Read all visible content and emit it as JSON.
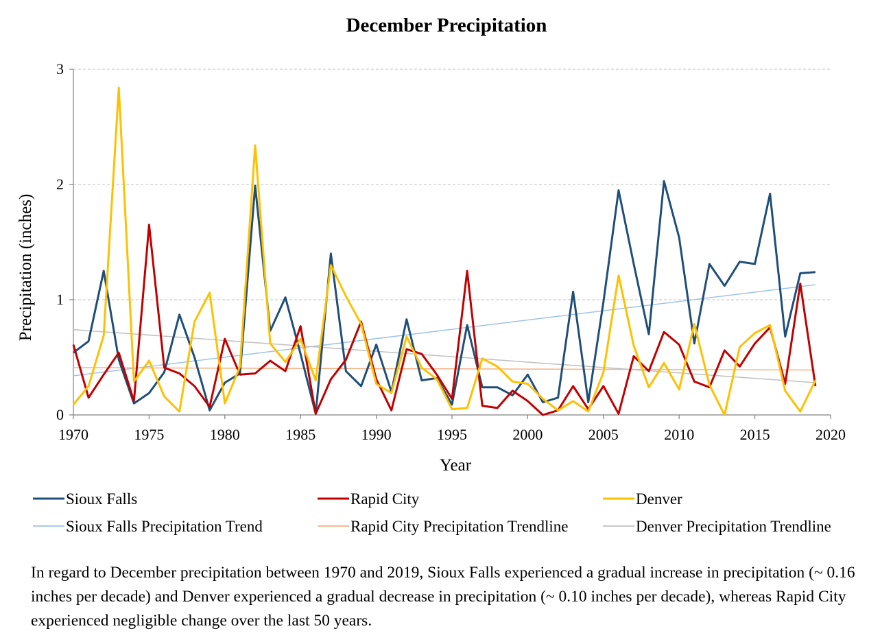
{
  "chart_data": {
    "type": "line",
    "title": "December Precipitation",
    "xlabel": "Year",
    "ylabel": "Precipitation (inches)",
    "xlim": [
      1970,
      2020
    ],
    "ylim": [
      0,
      3
    ],
    "xticks": [
      1970,
      1975,
      1980,
      1985,
      1990,
      1995,
      2000,
      2005,
      2010,
      2015,
      2020
    ],
    "yticks": [
      0,
      1,
      2,
      3
    ],
    "grid": "horizontal dashed",
    "legend_position": "bottom",
    "x": [
      1970,
      1971,
      1972,
      1973,
      1974,
      1975,
      1976,
      1977,
      1978,
      1979,
      1980,
      1981,
      1982,
      1983,
      1984,
      1985,
      1986,
      1987,
      1988,
      1989,
      1990,
      1991,
      1992,
      1993,
      1994,
      1995,
      1996,
      1997,
      1998,
      1999,
      2000,
      2001,
      2002,
      2003,
      2004,
      2005,
      2006,
      2007,
      2008,
      2009,
      2010,
      2011,
      2012,
      2013,
      2014,
      2015,
      2016,
      2017,
      2018,
      2019
    ],
    "series": [
      {
        "name": "Sioux Falls",
        "color": "#1F4E79",
        "width": 3,
        "values": [
          0.54,
          0.64,
          1.25,
          0.48,
          0.1,
          0.19,
          0.37,
          0.87,
          0.5,
          0.04,
          0.28,
          0.36,
          1.99,
          0.73,
          1.02,
          0.53,
          0.01,
          1.4,
          0.38,
          0.25,
          0.61,
          0.2,
          0.83,
          0.3,
          0.32,
          0.09,
          0.78,
          0.24,
          0.24,
          0.17,
          0.35,
          0.11,
          0.15,
          1.07,
          0.11,
          0.98,
          1.95,
          1.31,
          0.7,
          2.03,
          1.54,
          0.62,
          1.31,
          1.12,
          1.33,
          1.31,
          1.92,
          0.68,
          1.23,
          1.24
        ]
      },
      {
        "name": "Rapid City",
        "color": "#C00000",
        "width": 3,
        "values": [
          0.61,
          0.15,
          0.35,
          0.54,
          0.12,
          1.65,
          0.41,
          0.36,
          0.25,
          0.07,
          0.66,
          0.35,
          0.36,
          0.47,
          0.38,
          0.77,
          0.01,
          0.31,
          0.48,
          0.81,
          0.31,
          0.04,
          0.57,
          0.53,
          0.35,
          0.14,
          1.25,
          0.08,
          0.06,
          0.21,
          0.12,
          0.0,
          0.04,
          0.25,
          0.05,
          0.25,
          0.01,
          0.51,
          0.38,
          0.72,
          0.61,
          0.29,
          0.24,
          0.56,
          0.42,
          0.62,
          0.76,
          0.27,
          1.14,
          0.25
        ]
      },
      {
        "name": "Denver",
        "color": "#FFC000",
        "width": 3,
        "values": [
          0.09,
          0.25,
          0.69,
          2.84,
          0.29,
          0.47,
          0.16,
          0.03,
          0.81,
          1.06,
          0.1,
          0.42,
          2.34,
          0.62,
          0.46,
          0.66,
          0.3,
          1.3,
          1.03,
          0.79,
          0.27,
          0.19,
          0.68,
          0.41,
          0.31,
          0.05,
          0.06,
          0.49,
          0.42,
          0.29,
          0.27,
          0.14,
          0.04,
          0.12,
          0.03,
          0.37,
          1.21,
          0.6,
          0.24,
          0.45,
          0.22,
          0.79,
          0.26,
          0.0,
          0.59,
          0.71,
          0.78,
          0.21,
          0.03,
          0.3
        ]
      },
      {
        "name": "Sioux Falls Precipitation Trend",
        "color": "#9DC3E6",
        "width": 1.5,
        "trend": true,
        "endpoints": {
          "x": [
            1970,
            2019
          ],
          "y": [
            0.34,
            1.13
          ]
        }
      },
      {
        "name": "Rapid City Precipitation Trendline",
        "color": "#F4B183",
        "width": 1.5,
        "trend": true,
        "endpoints": {
          "x": [
            1970,
            2019
          ],
          "y": [
            0.41,
            0.39
          ]
        }
      },
      {
        "name": "Denver Precipitation Trendline",
        "color": "#BFBFBF",
        "width": 1.5,
        "trend": true,
        "endpoints": {
          "x": [
            1970,
            2019
          ],
          "y": [
            0.74,
            0.28
          ]
        }
      }
    ]
  },
  "caption": "In regard to December precipitation between 1970 and 2019, Sioux Falls experienced a gradual increase in precipitation (~ 0.16 inches per decade) and Denver experienced a gradual decrease in precipitation (~ 0.10 inches per decade), whereas Rapid City experienced negligible change over the last 50 years."
}
